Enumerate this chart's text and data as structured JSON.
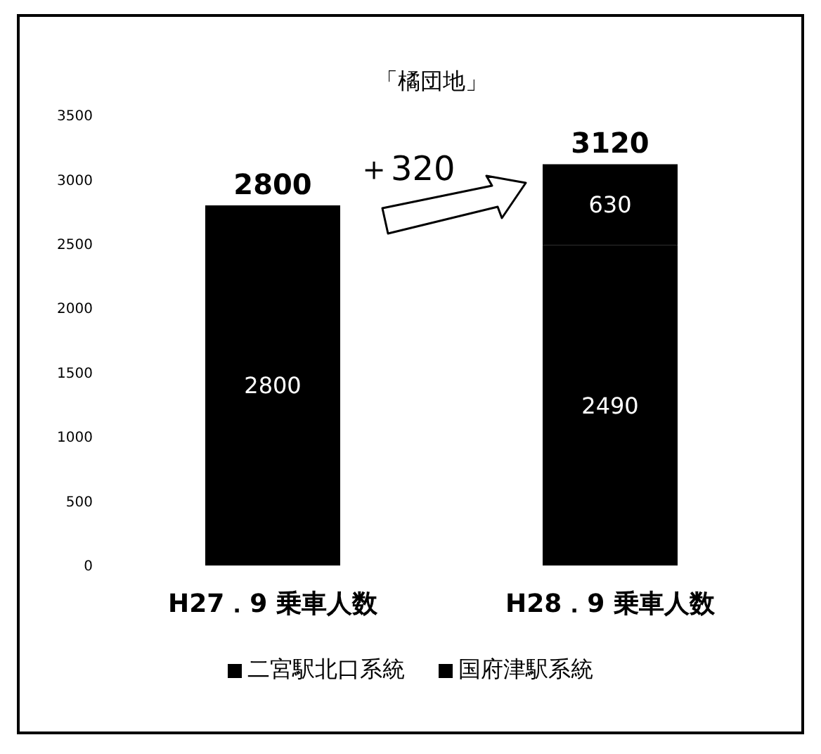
{
  "chart_data": {
    "type": "bar",
    "title": "「橘団地」",
    "categories": [
      "H27．9 乗車人数",
      "H28．9 乗車人数"
    ],
    "stacked": true,
    "series": [
      {
        "name": "二宮駅北口系統",
        "color": "#000000",
        "values": [
          2800,
          2490
        ]
      },
      {
        "name": "国府津駅系統",
        "color": "#000000",
        "values": [
          null,
          630
        ]
      }
    ],
    "ylim": [
      0,
      3500
    ],
    "yticks": [
      0,
      500,
      1000,
      1500,
      2000,
      2500,
      3000,
      3500
    ],
    "grid": false,
    "legend": "bottom",
    "data_labels": true,
    "totals": [
      "2800",
      "3120"
    ],
    "annotations": [
      "＋320"
    ]
  }
}
